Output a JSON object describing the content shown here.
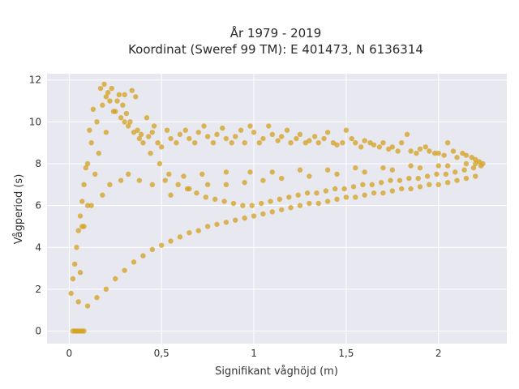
{
  "chart_data": {
    "type": "scatter",
    "title": "År 1979 - 2019",
    "subtitle": "Koordinat (Sweref 99 TM): E 401473, N 6136314",
    "xlabel": "Signifikant våghöjd (m)",
    "ylabel": "Vågperiod (s)",
    "xlim": [
      -0.12,
      2.37
    ],
    "ylim": [
      -0.6,
      12.3
    ],
    "x_ticks": [
      0,
      0.5,
      1,
      1.5,
      2
    ],
    "x_tick_labels": [
      "0",
      "0,5",
      "1",
      "1,5",
      "2"
    ],
    "y_ticks": [
      0,
      2,
      4,
      6,
      8,
      10,
      12
    ],
    "y_tick_labels": [
      "0",
      "2",
      "4",
      "6",
      "8",
      "10",
      "12"
    ],
    "grid": true,
    "background": "#e8e8f0",
    "grid_color": "#ffffff",
    "series": [
      {
        "color": "#d4a21f",
        "x": [
          0.02,
          0.04,
          0.06,
          0.08,
          0.03,
          0.05,
          0.07,
          0.01,
          0.02,
          0.03,
          0.04,
          0.05,
          0.06,
          0.07,
          0.08,
          0.1,
          0.12,
          0.15,
          0.18,
          0.2,
          0.22,
          0.25,
          0.28,
          0.3,
          0.32,
          0.35,
          0.38,
          0.4,
          0.43,
          0.45,
          0.48,
          0.5,
          0.53,
          0.55,
          0.58,
          0.6,
          0.63,
          0.65,
          0.68,
          0.7,
          0.73,
          0.75,
          0.78,
          0.8,
          0.83,
          0.85,
          0.88,
          0.9,
          0.93,
          0.95,
          0.98,
          1.0,
          1.03,
          1.05,
          1.08,
          1.1,
          1.13,
          1.15,
          1.18,
          1.2,
          1.23,
          1.25,
          1.28,
          1.3,
          1.33,
          1.35,
          1.38,
          1.4,
          1.43,
          1.45,
          1.48,
          1.5,
          1.53,
          1.55,
          1.58,
          1.6,
          1.63,
          1.65,
          1.68,
          1.7,
          1.73,
          1.75,
          1.78,
          1.8,
          1.83,
          1.85,
          1.88,
          1.9,
          1.93,
          1.95,
          1.98,
          2.0,
          2.03,
          2.05,
          2.08,
          2.1,
          2.13,
          2.15,
          2.18,
          2.2,
          2.22,
          2.24,
          0.1,
          0.15,
          0.2,
          0.25,
          0.3,
          0.35,
          0.4,
          0.45,
          0.5,
          0.55,
          0.6,
          0.65,
          0.7,
          0.75,
          0.8,
          0.85,
          0.9,
          0.95,
          1.0,
          1.05,
          1.1,
          1.15,
          1.2,
          1.25,
          1.3,
          1.35,
          1.4,
          1.45,
          1.5,
          1.55,
          1.6,
          1.65,
          1.7,
          1.75,
          1.8,
          1.85,
          1.9,
          1.95,
          2.0,
          2.05,
          2.1,
          2.15,
          2.2,
          0.12,
          0.18,
          0.22,
          0.28,
          0.32,
          0.38,
          0.45,
          0.52,
          0.62,
          0.72,
          0.85,
          0.98,
          1.1,
          1.25,
          1.4,
          1.55,
          1.7,
          1.85,
          2.0,
          2.15,
          0.08,
          0.1,
          0.14,
          0.16,
          0.2,
          0.24,
          0.26,
          0.3,
          0.34,
          0.36,
          0.42,
          0.46,
          0.55,
          0.65,
          0.75,
          0.85,
          0.95,
          1.05,
          1.15,
          1.3,
          1.45,
          1.6,
          1.75,
          1.9,
          2.05,
          2.2,
          0.05,
          0.06,
          0.07,
          0.09,
          0.11,
          0.13,
          0.17,
          0.19,
          0.21,
          0.23,
          0.27,
          0.29,
          0.31,
          0.33,
          0.37,
          0.39,
          0.44,
          0.49,
          0.54,
          0.59,
          0.64,
          0.69,
          0.74,
          0.79,
          0.84,
          0.89,
          0.94,
          0.99,
          1.04,
          1.09,
          1.14,
          1.19,
          1.24,
          1.29,
          1.34,
          1.39,
          1.44,
          1.49,
          1.54,
          1.59,
          1.64,
          1.69,
          1.74,
          1.79,
          1.84,
          1.89,
          1.94,
          1.99,
          2.04,
          2.09,
          2.14,
          2.19,
          2.23
        ],
        "y": [
          0,
          0,
          0,
          0,
          0,
          0,
          0,
          1.8,
          2.5,
          3.2,
          4.0,
          4.8,
          5.5,
          6.2,
          7.0,
          8.0,
          9.0,
          10.0,
          10.8,
          11.2,
          11.0,
          10.5,
          10.2,
          10.0,
          9.8,
          9.5,
          9.2,
          9.0,
          9.3,
          9.5,
          9.0,
          8.8,
          9.6,
          9.2,
          9.0,
          9.4,
          9.6,
          9.2,
          9.0,
          9.5,
          9.8,
          9.3,
          9.0,
          9.4,
          9.7,
          9.2,
          9.0,
          9.3,
          9.6,
          9.0,
          9.8,
          9.5,
          9.0,
          9.2,
          9.8,
          9.4,
          9.1,
          9.3,
          9.6,
          9.0,
          9.2,
          9.4,
          9.0,
          9.1,
          9.3,
          9.0,
          9.2,
          9.5,
          9.0,
          8.9,
          9.0,
          9.6,
          9.2,
          9.0,
          8.8,
          9.1,
          9.0,
          8.9,
          8.8,
          9.0,
          8.7,
          8.8,
          8.6,
          9.0,
          9.4,
          8.6,
          8.5,
          8.7,
          8.8,
          8.6,
          8.5,
          8.5,
          8.4,
          9.0,
          8.6,
          8.3,
          8.5,
          8.4,
          8.3,
          8.2,
          8.1,
          8.0,
          1.2,
          1.6,
          2.0,
          2.5,
          2.9,
          3.3,
          3.6,
          3.9,
          4.1,
          4.3,
          4.5,
          4.7,
          4.8,
          5.0,
          5.1,
          5.2,
          5.3,
          5.4,
          5.5,
          5.6,
          5.7,
          5.8,
          5.9,
          6.0,
          6.1,
          6.1,
          6.2,
          6.3,
          6.4,
          6.4,
          6.5,
          6.6,
          6.6,
          6.7,
          6.8,
          6.8,
          6.9,
          7.0,
          7.0,
          7.1,
          7.2,
          7.3,
          7.4,
          6.0,
          6.5,
          7.0,
          7.2,
          7.5,
          7.2,
          7.0,
          7.2,
          7.4,
          7.5,
          7.6,
          7.6,
          7.6,
          7.7,
          7.7,
          7.8,
          7.8,
          7.9,
          7.9,
          8.0,
          5.0,
          6.0,
          7.5,
          8.5,
          9.5,
          10.5,
          11.0,
          11.3,
          11.5,
          11.2,
          10.2,
          9.8,
          6.5,
          6.8,
          7.0,
          7.0,
          7.1,
          7.2,
          7.3,
          7.4,
          7.5,
          7.6,
          7.7,
          7.8,
          7.9,
          8.0,
          1.4,
          2.8,
          5.0,
          7.8,
          9.6,
          10.6,
          11.6,
          11.8,
          11.4,
          11.6,
          11.3,
          10.8,
          10.4,
          10.0,
          9.6,
          9.4,
          8.5,
          8.0,
          7.5,
          7.0,
          6.8,
          6.6,
          6.4,
          6.3,
          6.2,
          6.1,
          6.0,
          6.0,
          6.1,
          6.2,
          6.3,
          6.4,
          6.5,
          6.6,
          6.6,
          6.7,
          6.8,
          6.8,
          6.9,
          7.0,
          7.0,
          7.1,
          7.2,
          7.2,
          7.3,
          7.3,
          7.4,
          7.5,
          7.5,
          7.6,
          7.7,
          7.8,
          7.9
        ]
      }
    ]
  }
}
